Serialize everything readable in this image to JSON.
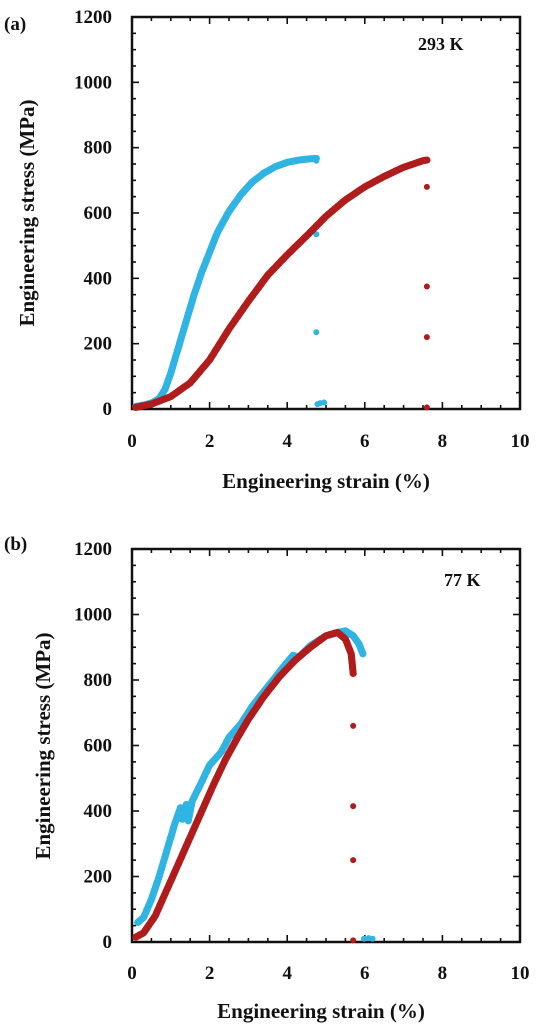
{
  "colors": {
    "blue": "#2fb4e3",
    "red": "#b01c1c"
  },
  "chart_data": [
    {
      "type": "scatter",
      "panel_label": "(a)",
      "annotation": "293 K",
      "xlabel": "Engineering strain (%)",
      "ylabel": "Engineering stress (MPa)",
      "xlim": [
        0,
        10
      ],
      "ylim": [
        0,
        1200
      ],
      "x_ticks": [
        "0",
        "2",
        "4",
        "6",
        "8",
        "10"
      ],
      "y_ticks": [
        "0",
        "200",
        "400",
        "600",
        "800",
        "1000",
        "1200"
      ],
      "series": [
        {
          "color": "#2fb4e3",
          "curve": [
            [
              0.1,
              8
            ],
            [
              0.3,
              12
            ],
            [
              0.5,
              18
            ],
            [
              0.7,
              32
            ],
            [
              0.85,
              60
            ],
            [
              1.0,
              110
            ],
            [
              1.2,
              190
            ],
            [
              1.4,
              270
            ],
            [
              1.6,
              350
            ],
            [
              1.8,
              420
            ],
            [
              2.0,
              480
            ],
            [
              2.2,
              540
            ],
            [
              2.5,
              605
            ],
            [
              2.8,
              655
            ],
            [
              3.1,
              695
            ],
            [
              3.4,
              722
            ],
            [
              3.7,
              742
            ],
            [
              4.0,
              755
            ],
            [
              4.3,
              762
            ],
            [
              4.6,
              766
            ],
            [
              4.75,
              767
            ]
          ],
          "drop_points": [
            [
              4.75,
              760
            ],
            [
              4.75,
              535
            ],
            [
              4.75,
              235
            ],
            [
              4.78,
              15
            ],
            [
              4.85,
              18
            ],
            [
              4.95,
              20
            ]
          ]
        },
        {
          "color": "#b01c1c",
          "curve": [
            [
              0.1,
              5
            ],
            [
              0.5,
              15
            ],
            [
              1.0,
              38
            ],
            [
              1.5,
              80
            ],
            [
              2.0,
              150
            ],
            [
              2.5,
              245
            ],
            [
              3.0,
              330
            ],
            [
              3.5,
              410
            ],
            [
              4.0,
              472
            ],
            [
              4.5,
              530
            ],
            [
              5.0,
              590
            ],
            [
              5.5,
              640
            ],
            [
              6.0,
              680
            ],
            [
              6.5,
              712
            ],
            [
              7.0,
              740
            ],
            [
              7.5,
              760
            ],
            [
              7.6,
              762
            ]
          ],
          "drop_points": [
            [
              7.6,
              680
            ],
            [
              7.6,
              375
            ],
            [
              7.6,
              220
            ],
            [
              7.6,
              5
            ]
          ]
        }
      ]
    },
    {
      "type": "scatter",
      "panel_label": "(b)",
      "annotation": "77 K",
      "xlabel": "Engineering strain (%)",
      "ylabel": "Engineering stress (MPa)",
      "xlim": [
        0,
        10
      ],
      "ylim": [
        0,
        1200
      ],
      "x_ticks": [
        "0",
        "2",
        "4",
        "6",
        "8",
        "10"
      ],
      "y_ticks": [
        "0",
        "200",
        "400",
        "600",
        "800",
        "1000",
        "1200"
      ],
      "series": [
        {
          "color": "#2fb4e3",
          "curve": [
            [
              0.15,
              60
            ],
            [
              0.3,
              75
            ],
            [
              0.5,
              130
            ],
            [
              0.7,
              200
            ],
            [
              0.9,
              280
            ],
            [
              1.1,
              360
            ],
            [
              1.25,
              410
            ],
            [
              1.3,
              375
            ],
            [
              1.4,
              420
            ],
            [
              1.45,
              370
            ],
            [
              1.55,
              430
            ],
            [
              1.8,
              490
            ],
            [
              2.0,
              540
            ],
            [
              2.3,
              580
            ],
            [
              2.5,
              625
            ],
            [
              2.8,
              665
            ],
            [
              3.1,
              720
            ],
            [
              3.5,
              780
            ],
            [
              3.9,
              840
            ],
            [
              4.15,
              875
            ],
            [
              4.3,
              870
            ],
            [
              4.6,
              905
            ],
            [
              5.0,
              935
            ],
            [
              5.3,
              945
            ],
            [
              5.5,
              950
            ],
            [
              5.7,
              935
            ],
            [
              5.85,
              910
            ],
            [
              5.95,
              880
            ]
          ],
          "drop_points": [
            [
              5.95,
              880
            ],
            [
              5.98,
              10
            ],
            [
              6.1,
              12
            ],
            [
              6.2,
              10
            ]
          ]
        },
        {
          "color": "#b01c1c",
          "curve": [
            [
              0.1,
              15
            ],
            [
              0.3,
              28
            ],
            [
              0.6,
              80
            ],
            [
              0.9,
              160
            ],
            [
              1.2,
              240
            ],
            [
              1.5,
              320
            ],
            [
              1.8,
              400
            ],
            [
              2.1,
              480
            ],
            [
              2.4,
              555
            ],
            [
              2.7,
              620
            ],
            [
              3.0,
              680
            ],
            [
              3.4,
              750
            ],
            [
              3.8,
              810
            ],
            [
              4.2,
              860
            ],
            [
              4.6,
              900
            ],
            [
              5.0,
              935
            ],
            [
              5.3,
              945
            ],
            [
              5.5,
              925
            ],
            [
              5.65,
              880
            ],
            [
              5.7,
              820
            ]
          ],
          "drop_points": [
            [
              5.7,
              660
            ],
            [
              5.7,
              415
            ],
            [
              5.7,
              250
            ],
            [
              5.7,
              5
            ]
          ]
        }
      ]
    }
  ]
}
